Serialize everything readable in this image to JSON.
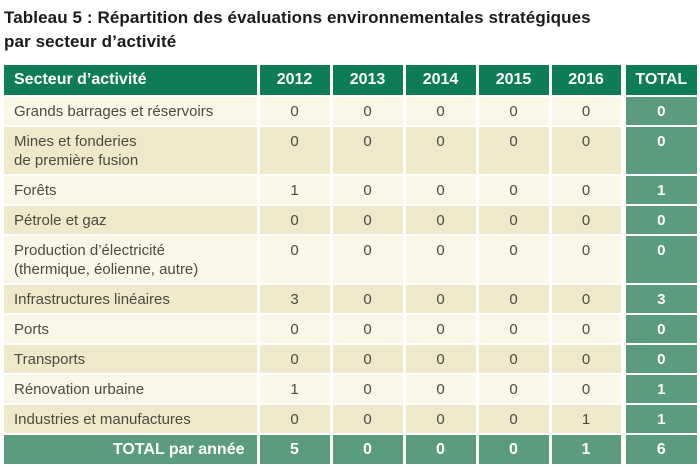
{
  "title": {
    "line1": "Tableau 5 : Répartition des évaluations environnementales stratégiques",
    "line2": "par secteur d’activité"
  },
  "colors": {
    "header_green": "#0e7c58",
    "accent_green": "#5a9c7d",
    "row_light": "#faf7e6",
    "row_dark": "#efe8ca",
    "body_text": "#4b4b42",
    "title_text": "#1a1a18",
    "separator": "#ffffff"
  },
  "table": {
    "columns": [
      "Secteur d’activité",
      "2012",
      "2013",
      "2014",
      "2015",
      "2016",
      "TOTAL"
    ],
    "rows": [
      {
        "label": "Grands barrages et réservoirs",
        "values": [
          0,
          0,
          0,
          0,
          0
        ],
        "total": 0
      },
      {
        "label": "Mines et fonderies\nde première fusion",
        "values": [
          0,
          0,
          0,
          0,
          0
        ],
        "total": 0
      },
      {
        "label": "Forêts",
        "values": [
          1,
          0,
          0,
          0,
          0
        ],
        "total": 1
      },
      {
        "label": "Pétrole et gaz",
        "values": [
          0,
          0,
          0,
          0,
          0
        ],
        "total": 0
      },
      {
        "label": "Production d’électricité\n(thermique, éolienne, autre)",
        "values": [
          0,
          0,
          0,
          0,
          0
        ],
        "total": 0
      },
      {
        "label": "Infrastructures linéaires",
        "values": [
          3,
          0,
          0,
          0,
          0
        ],
        "total": 3
      },
      {
        "label": "Ports",
        "values": [
          0,
          0,
          0,
          0,
          0
        ],
        "total": 0
      },
      {
        "label": "Transports",
        "values": [
          0,
          0,
          0,
          0,
          0
        ],
        "total": 0
      },
      {
        "label": "Rénovation urbaine",
        "values": [
          1,
          0,
          0,
          0,
          0
        ],
        "total": 1
      },
      {
        "label": "Industries et manufactures",
        "values": [
          0,
          0,
          0,
          0,
          1
        ],
        "total": 1
      }
    ],
    "footer": {
      "label": "TOTAL par année",
      "values": [
        5,
        0,
        0,
        0,
        1
      ],
      "total": 6
    }
  }
}
